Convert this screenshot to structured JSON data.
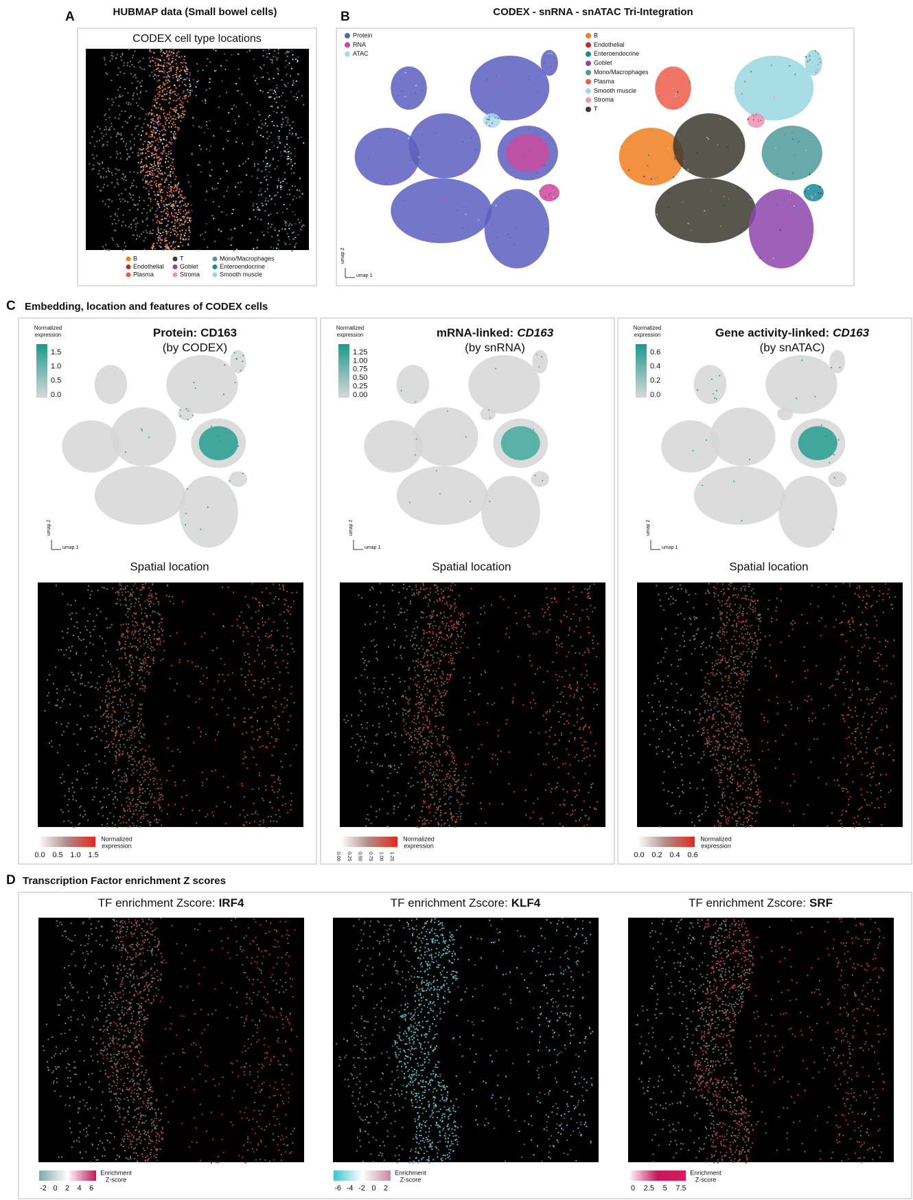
{
  "panel_a": {
    "label": "A",
    "title": "HUBMAP data (Small bowel cells)",
    "subtitle": "CODEX cell type locations",
    "legend": [
      {
        "name": "B",
        "color": "#f07f1f"
      },
      {
        "name": "Endothelial",
        "color": "#c62828"
      },
      {
        "name": "Plasma",
        "color": "#ef5d4a"
      },
      {
        "name": "T",
        "color": "#3a3a2e"
      },
      {
        "name": "Goblet",
        "color": "#8e44ad"
      },
      {
        "name": "Stroma",
        "color": "#f48fb1"
      },
      {
        "name": "Mono/Macrophages",
        "color": "#4e9a9a"
      },
      {
        "name": "Enteroendocrine",
        "color": "#16899a"
      },
      {
        "name": "Smooth muscle",
        "color": "#9ad7e0"
      }
    ]
  },
  "panel_b": {
    "label": "B",
    "title": "CODEX - snRNA - snATAC Tri-Integration",
    "modality_legend": [
      {
        "name": "Protein",
        "color": "#5c5fc0"
      },
      {
        "name": "RNA",
        "color": "#d0479a"
      },
      {
        "name": "ATAC",
        "color": "#a8dde6"
      }
    ],
    "cell_type_legend": [
      {
        "name": "B",
        "color": "#f07f1f"
      },
      {
        "name": "Endothelial",
        "color": "#c62828"
      },
      {
        "name": "Enteroendocrine",
        "color": "#16899a"
      },
      {
        "name": "Goblet",
        "color": "#8e44ad"
      },
      {
        "name": "Mono/Macrophages",
        "color": "#4e9a9a"
      },
      {
        "name": "Plasma",
        "color": "#ef5d4a"
      },
      {
        "name": "Smooth muscle",
        "color": "#9ad7e0"
      },
      {
        "name": "Stroma",
        "color": "#f48fb1"
      },
      {
        "name": "T",
        "color": "#3a3a2e"
      }
    ],
    "x_axis": "umap 1",
    "y_axis": "umap 2"
  },
  "panel_c": {
    "label": "C",
    "title": "Embedding, location and features of CODEX cells",
    "subpanels": [
      {
        "title": "Protein:",
        "gene": "CD163",
        "source": "(by CODEX)",
        "colorbar_label": [
          "Normalized",
          "expression"
        ],
        "colorbar_ticks": [
          "1.5",
          "1.0",
          "0.5",
          "0.0"
        ],
        "x_axis": "umap 1",
        "y_axis": "umap 2",
        "spatial_title": "Spatial location",
        "spatial_colorbar_label": [
          "Normalized",
          "expression"
        ],
        "spatial_colorbar_ticks": [
          "0.0",
          "0.5",
          "1.0",
          "1.5"
        ]
      },
      {
        "title": "mRNA-linked:",
        "gene": "CD163",
        "source": "(by snRNA)",
        "colorbar_label": [
          "Normalized",
          "expression"
        ],
        "colorbar_ticks": [
          "1.25",
          "1.00",
          "0.75",
          "0.50",
          "0.25",
          "0.00"
        ],
        "x_axis": "umap 1",
        "y_axis": "umap 2",
        "spatial_title": "Spatial location",
        "spatial_colorbar_label": [
          "Normalized",
          "expression"
        ],
        "spatial_colorbar_ticks": [
          "0.00",
          "0.25",
          "0.50",
          "0.75",
          "1.00",
          "1.25"
        ]
      },
      {
        "title": "Gene activity-linked:",
        "gene": "CD163",
        "source": "(by snATAC)",
        "colorbar_label": [
          "Normalized",
          "expression"
        ],
        "colorbar_ticks": [
          "0.6",
          "0.4",
          "0.2",
          "0.0"
        ],
        "x_axis": "umap 1",
        "y_axis": "umap 2",
        "spatial_title": "Spatial location",
        "spatial_colorbar_label": [
          "Normalized",
          "expression"
        ],
        "spatial_colorbar_ticks": [
          "0.0",
          "0.2",
          "0.4",
          "0.6"
        ]
      }
    ]
  },
  "panel_d": {
    "label": "D",
    "title": "Transcription Factor enrichment Z scores",
    "subpanels": [
      {
        "title": "TF enrichment Zscore:",
        "factor": "IRF4",
        "colorbar_label": [
          "Enrichment",
          "Z-score"
        ],
        "colorbar_ticks": [
          "-2",
          "0",
          "2",
          "4",
          "6"
        ],
        "colors": [
          "#7fa8a8",
          "#ffffff",
          "#c2185b"
        ]
      },
      {
        "title": "TF enrichment Zscore:",
        "factor": "KLF4",
        "colorbar_label": [
          "Enrichment",
          "Z-score"
        ],
        "colorbar_ticks": [
          "-6",
          "-4",
          "-2",
          "0",
          "2"
        ],
        "colors": [
          "#3fc6cc",
          "#ffffff",
          "#c98a9e"
        ]
      },
      {
        "title": "TF enrichment Zscore:",
        "factor": "SRF",
        "colorbar_label": [
          "Enrichment",
          "Z-score"
        ],
        "colorbar_ticks": [
          "0",
          "2.5",
          "5",
          "7.5"
        ],
        "colors": [
          "#ffffff",
          "#c2185b",
          "#e0185b"
        ]
      }
    ]
  }
}
